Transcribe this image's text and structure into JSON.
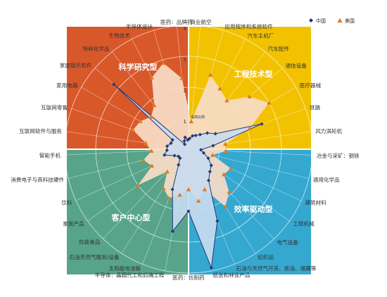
{
  "chart_data": {
    "type": "radar",
    "center_label": "提高比例",
    "r_ticks": [
      "1",
      "2",
      "3",
      "4"
    ],
    "r_max": 4,
    "legend": [
      {
        "name": "中国",
        "color": "#1f3a7a",
        "marker": "diamond"
      },
      {
        "name": "美国",
        "color": "#e07a20",
        "marker": "triangle"
      }
    ],
    "quadrants": [
      {
        "name": "工程技术型",
        "color": "#f2c200"
      },
      {
        "name": "效率驱动型",
        "color": "#35a8d0"
      },
      {
        "name": "客户中心型",
        "color": "#57a48a"
      },
      {
        "name": "科学研究型",
        "color": "#d9582a"
      }
    ],
    "categories": [
      "商业航空",
      "应用程序和系统软件",
      "汽车主机厂",
      "汽车配件",
      "通信设备",
      "医疗器械",
      "铁路",
      "风力涡轮机",
      "冶金与采矿：钢铁",
      "通用化学品",
      "建筑材料",
      "工程机械",
      "电气设备",
      "纺织品",
      "石油与天然气开采、炼油、储藏等",
      "纸张和林业产品",
      "医药：仿制药",
      "半导体：晶圆代工和后端工程",
      "太阳能电池板",
      "石油天然气服务/设备",
      "包装食品",
      "家居产品",
      "饮料",
      "消费电子与高科技硬件",
      "智能手机",
      "互联网软件与服务",
      "互联网零售",
      "家用电器",
      "家庭娱乐软件",
      "特种化学品",
      "生物技术",
      "半导体设计",
      "医药：品牌药"
    ],
    "series": [
      {
        "name": "中国",
        "values": [
          0.35,
          0.45,
          0.5,
          0.6,
          0.8,
          1.0,
          2.5,
          0.8,
          0.4,
          0.5,
          0.7,
          0.9,
          1.0,
          1.2,
          2.5,
          3.9,
          2.0,
          2.7,
          1.4,
          0.6,
          0.4,
          0.4,
          0.5,
          0.8,
          0.7,
          0.7,
          0.6,
          0.6,
          3.2,
          0.2,
          0.3,
          0.4,
          0.3
        ]
      },
      {
        "name": "美国",
        "values": [
          0.9,
          2.5,
          2.2,
          2.0,
          2.6,
          3.0,
          2.1,
          1.2,
          1.2,
          0.8,
          1.5,
          1.4,
          1.9,
          2.2,
          1.4,
          1.7,
          1.3,
          1.5,
          1.7,
          1.5,
          1.0,
          2.0,
          1.3,
          1.5,
          1.2,
          1.4,
          1.9,
          1.8,
          1.6,
          1.8,
          2.6,
          2.9,
          2.3
        ]
      }
    ]
  }
}
